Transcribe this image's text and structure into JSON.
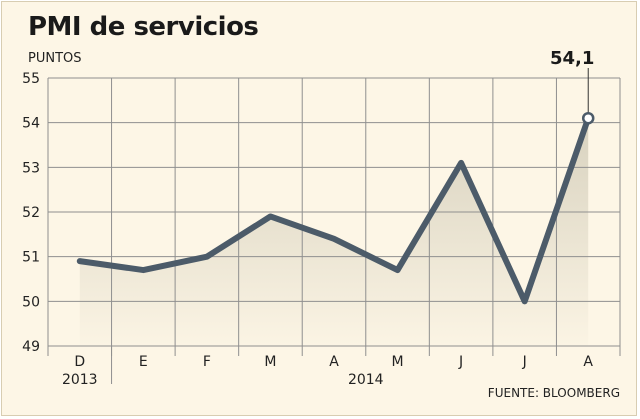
{
  "title": "PMI de servicios",
  "ylabel": "PUNTOS",
  "source": "FUENTE: BLOOMBERG",
  "callout": "54,1",
  "colors": {
    "line": "#4c5b69",
    "fill": "#d6d0bd",
    "background": "#fdf6e6",
    "grid": "#8f8f8f"
  },
  "chart_data": {
    "type": "area",
    "title": "PMI de servicios",
    "ylabel": "PUNTOS",
    "xlabel": "",
    "categories": [
      "D",
      "E",
      "F",
      "M",
      "A",
      "M",
      "J",
      "J",
      "A"
    ],
    "year_labels": [
      "2013",
      "2014"
    ],
    "values": [
      50.9,
      50.7,
      51.0,
      51.9,
      51.4,
      50.7,
      53.1,
      50.0,
      54.1
    ],
    "ylim": [
      49,
      55
    ],
    "yticks": [
      "49",
      "50",
      "51",
      "52",
      "53",
      "54",
      "55"
    ],
    "grid": true,
    "highlight_label": "54,1"
  }
}
